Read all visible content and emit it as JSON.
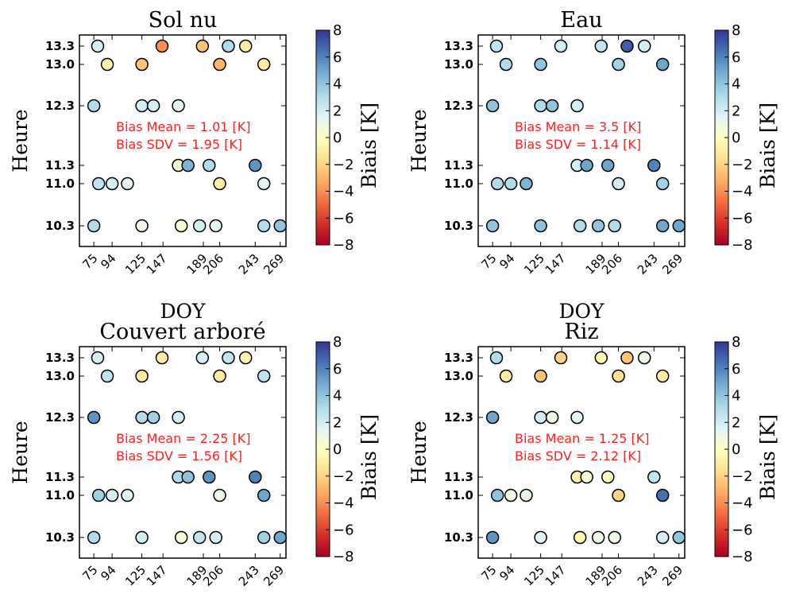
{
  "colormap": {
    "name": "RdYlBu",
    "stops": [
      "#a50026",
      "#d73027",
      "#f46d43",
      "#fdae61",
      "#fee090",
      "#ffffbf",
      "#e0f3f8",
      "#abd9e9",
      "#74add1",
      "#4575b4",
      "#313695"
    ]
  },
  "chart_data": [
    {
      "type": "scatter",
      "title": "Sol nu",
      "xlabel": "DOY",
      "ylabel": "Heure",
      "colorbar_label": "Biais [K]",
      "x_ticks": [
        "75",
        "94",
        "125",
        "147",
        "189",
        "206",
        "243",
        "269"
      ],
      "y_ticks": [
        "10.3",
        "11.0",
        "11.3",
        "12.3",
        "13.0",
        "13.3"
      ],
      "colorbar_ticks": [
        "−8",
        "−6",
        "−4",
        "−2",
        "0",
        "2",
        "4",
        "6",
        "8"
      ],
      "clim": [
        -8,
        8
      ],
      "annotations": [
        "Bias Mean = 1.01 [K]",
        "Bias SDV = 1.95 [K]"
      ],
      "points": [
        {
          "doy": 79,
          "hour": 13.3,
          "bias": 2
        },
        {
          "doy": 146,
          "hour": 13.3,
          "bias": -4
        },
        {
          "doy": 188,
          "hour": 13.3,
          "bias": -2.5
        },
        {
          "doy": 215,
          "hour": 13.3,
          "bias": 3
        },
        {
          "doy": 233,
          "hour": 13.3,
          "bias": -1
        },
        {
          "doy": 89,
          "hour": 13.0,
          "bias": -0.5
        },
        {
          "doy": 125,
          "hour": 13.0,
          "bias": -2.5
        },
        {
          "doy": 206,
          "hour": 13.0,
          "bias": -3
        },
        {
          "doy": 252,
          "hour": 13.0,
          "bias": -1
        },
        {
          "doy": 75,
          "hour": 12.3,
          "bias": 3
        },
        {
          "doy": 125,
          "hour": 12.3,
          "bias": 2
        },
        {
          "doy": 137,
          "hour": 12.3,
          "bias": 2
        },
        {
          "doy": 163,
          "hour": 12.3,
          "bias": 1.5
        },
        {
          "doy": 163,
          "hour": 11.3,
          "bias": 0.5
        },
        {
          "doy": 173,
          "hour": 11.3,
          "bias": 4.5
        },
        {
          "doy": 195,
          "hour": 11.3,
          "bias": 3
        },
        {
          "doy": 243,
          "hour": 11.3,
          "bias": 5.5
        },
        {
          "doy": 80,
          "hour": 11.0,
          "bias": 2.5
        },
        {
          "doy": 94,
          "hour": 11.0,
          "bias": 2
        },
        {
          "doy": 110,
          "hour": 11.0,
          "bias": 1.5
        },
        {
          "doy": 206,
          "hour": 11.0,
          "bias": -1
        },
        {
          "doy": 252,
          "hour": 11.0,
          "bias": 1.5
        },
        {
          "doy": 75,
          "hour": 10.3,
          "bias": 3
        },
        {
          "doy": 125,
          "hour": 10.3,
          "bias": 1
        },
        {
          "doy": 166,
          "hour": 10.3,
          "bias": 0.5
        },
        {
          "doy": 185,
          "hour": 10.3,
          "bias": 2
        },
        {
          "doy": 202,
          "hour": 10.3,
          "bias": 1.5
        },
        {
          "doy": 252,
          "hour": 10.3,
          "bias": 3
        },
        {
          "doy": 269,
          "hour": 10.3,
          "bias": 4
        }
      ]
    },
    {
      "type": "scatter",
      "title": "Eau",
      "xlabel": "DOY",
      "ylabel": "Heure",
      "colorbar_label": "Biais [K]",
      "x_ticks": [
        "75",
        "94",
        "125",
        "147",
        "189",
        "206",
        "243",
        "269"
      ],
      "y_ticks": [
        "10.3",
        "11.0",
        "11.3",
        "12.3",
        "13.0",
        "13.3"
      ],
      "colorbar_ticks": [
        "−8",
        "−6",
        "−4",
        "−2",
        "0",
        "2",
        "4",
        "6",
        "8"
      ],
      "clim": [
        -8,
        8
      ],
      "annotations": [
        "Bias Mean = 3.5 [K]",
        "Bias SDV = 1.14 [K]"
      ],
      "points": [
        {
          "doy": 79,
          "hour": 13.3,
          "bias": 2.5
        },
        {
          "doy": 146,
          "hour": 13.3,
          "bias": 2
        },
        {
          "doy": 188,
          "hour": 13.3,
          "bias": 2.5
        },
        {
          "doy": 215,
          "hour": 13.3,
          "bias": 7
        },
        {
          "doy": 233,
          "hour": 13.3,
          "bias": 2
        },
        {
          "doy": 89,
          "hour": 13.0,
          "bias": 3
        },
        {
          "doy": 125,
          "hour": 13.0,
          "bias": 4
        },
        {
          "doy": 206,
          "hour": 13.0,
          "bias": 3.5
        },
        {
          "doy": 252,
          "hour": 13.0,
          "bias": 5
        },
        {
          "doy": 75,
          "hour": 12.3,
          "bias": 4
        },
        {
          "doy": 125,
          "hour": 12.3,
          "bias": 3
        },
        {
          "doy": 137,
          "hour": 12.3,
          "bias": 4
        },
        {
          "doy": 163,
          "hour": 12.3,
          "bias": 2
        },
        {
          "doy": 163,
          "hour": 11.3,
          "bias": 2
        },
        {
          "doy": 173,
          "hour": 11.3,
          "bias": 5
        },
        {
          "doy": 195,
          "hour": 11.3,
          "bias": 5
        },
        {
          "doy": 243,
          "hour": 11.3,
          "bias": 6
        },
        {
          "doy": 80,
          "hour": 11.0,
          "bias": 3
        },
        {
          "doy": 94,
          "hour": 11.0,
          "bias": 3
        },
        {
          "doy": 110,
          "hour": 11.0,
          "bias": 4.5
        },
        {
          "doy": 206,
          "hour": 11.0,
          "bias": 2
        },
        {
          "doy": 252,
          "hour": 11.0,
          "bias": 3.5
        },
        {
          "doy": 75,
          "hour": 10.3,
          "bias": 4
        },
        {
          "doy": 125,
          "hour": 10.3,
          "bias": 4
        },
        {
          "doy": 166,
          "hour": 10.3,
          "bias": 3
        },
        {
          "doy": 185,
          "hour": 10.3,
          "bias": 4
        },
        {
          "doy": 202,
          "hour": 10.3,
          "bias": 3
        },
        {
          "doy": 252,
          "hour": 10.3,
          "bias": 5
        },
        {
          "doy": 269,
          "hour": 10.3,
          "bias": 5
        }
      ]
    },
    {
      "type": "scatter",
      "title": "Couvert arboré",
      "xlabel": "DOY",
      "ylabel": "Heure",
      "colorbar_label": "Biais [K]",
      "x_ticks": [
        "75",
        "94",
        "125",
        "147",
        "189",
        "206",
        "243",
        "269"
      ],
      "y_ticks": [
        "10.3",
        "11.0",
        "11.3",
        "12.3",
        "13.0",
        "13.3"
      ],
      "colorbar_ticks": [
        "−8",
        "−6",
        "−4",
        "−2",
        "0",
        "2",
        "4",
        "6",
        "8"
      ],
      "clim": [
        -8,
        8
      ],
      "annotations": [
        "Bias Mean = 2.25 [K]",
        "Bias SDV = 1.56 [K]"
      ],
      "points": [
        {
          "doy": 79,
          "hour": 13.3,
          "bias": 2
        },
        {
          "doy": 146,
          "hour": 13.3,
          "bias": -1
        },
        {
          "doy": 188,
          "hour": 13.3,
          "bias": 2
        },
        {
          "doy": 215,
          "hour": 13.3,
          "bias": 2.5
        },
        {
          "doy": 233,
          "hour": 13.3,
          "bias": -0.5
        },
        {
          "doy": 89,
          "hour": 13.0,
          "bias": 2.5
        },
        {
          "doy": 125,
          "hour": 13.0,
          "bias": -1
        },
        {
          "doy": 206,
          "hour": 13.0,
          "bias": -1
        },
        {
          "doy": 252,
          "hour": 13.0,
          "bias": 2.5
        },
        {
          "doy": 75,
          "hour": 12.3,
          "bias": 5.5
        },
        {
          "doy": 125,
          "hour": 12.3,
          "bias": 3
        },
        {
          "doy": 137,
          "hour": 12.3,
          "bias": 3.5
        },
        {
          "doy": 163,
          "hour": 12.3,
          "bias": 2
        },
        {
          "doy": 163,
          "hour": 11.3,
          "bias": 3
        },
        {
          "doy": 173,
          "hour": 11.3,
          "bias": 4
        },
        {
          "doy": 195,
          "hour": 11.3,
          "bias": 5.5
        },
        {
          "doy": 243,
          "hour": 11.3,
          "bias": 6
        },
        {
          "doy": 80,
          "hour": 11.0,
          "bias": 3.5
        },
        {
          "doy": 94,
          "hour": 11.0,
          "bias": 2
        },
        {
          "doy": 110,
          "hour": 11.0,
          "bias": 1.5
        },
        {
          "doy": 206,
          "hour": 11.0,
          "bias": 1
        },
        {
          "doy": 252,
          "hour": 11.0,
          "bias": 5
        },
        {
          "doy": 75,
          "hour": 10.3,
          "bias": 3
        },
        {
          "doy": 125,
          "hour": 10.3,
          "bias": 2
        },
        {
          "doy": 166,
          "hour": 10.3,
          "bias": 0.5
        },
        {
          "doy": 185,
          "hour": 10.3,
          "bias": 2.5
        },
        {
          "doy": 202,
          "hour": 10.3,
          "bias": 2
        },
        {
          "doy": 252,
          "hour": 10.3,
          "bias": 3.5
        },
        {
          "doy": 269,
          "hour": 10.3,
          "bias": 5
        }
      ]
    },
    {
      "type": "scatter",
      "title": "Riz",
      "xlabel": "DOY",
      "ylabel": "Heure",
      "colorbar_label": "Biais [K]",
      "x_ticks": [
        "75",
        "94",
        "125",
        "147",
        "189",
        "206",
        "243",
        "269"
      ],
      "y_ticks": [
        "10.3",
        "11.0",
        "11.3",
        "12.3",
        "13.0",
        "13.3"
      ],
      "colorbar_ticks": [
        "−8",
        "−6",
        "−4",
        "−2",
        "0",
        "2",
        "4",
        "6",
        "8"
      ],
      "clim": [
        -8,
        8
      ],
      "annotations": [
        "Bias Mean = 1.25 [K]",
        "Bias SDV = 2.12 [K]"
      ],
      "points": [
        {
          "doy": 79,
          "hour": 13.3,
          "bias": 3
        },
        {
          "doy": 146,
          "hour": 13.3,
          "bias": -2
        },
        {
          "doy": 188,
          "hour": 13.3,
          "bias": -0.5
        },
        {
          "doy": 215,
          "hour": 13.3,
          "bias": -2.5
        },
        {
          "doy": 233,
          "hour": 13.3,
          "bias": 1
        },
        {
          "doy": 89,
          "hour": 13.0,
          "bias": -1
        },
        {
          "doy": 125,
          "hour": 13.0,
          "bias": -2.5
        },
        {
          "doy": 206,
          "hour": 13.0,
          "bias": -1.5
        },
        {
          "doy": 252,
          "hour": 13.0,
          "bias": -1
        },
        {
          "doy": 75,
          "hour": 12.3,
          "bias": 5
        },
        {
          "doy": 125,
          "hour": 12.3,
          "bias": 2
        },
        {
          "doy": 137,
          "hour": 12.3,
          "bias": 1
        },
        {
          "doy": 163,
          "hour": 12.3,
          "bias": 1.5
        },
        {
          "doy": 163,
          "hour": 11.3,
          "bias": -0.5
        },
        {
          "doy": 173,
          "hour": 11.3,
          "bias": 0.5
        },
        {
          "doy": 195,
          "hour": 11.3,
          "bias": 0
        },
        {
          "doy": 243,
          "hour": 11.3,
          "bias": 2.5
        },
        {
          "doy": 80,
          "hour": 11.0,
          "bias": 4
        },
        {
          "doy": 94,
          "hour": 11.0,
          "bias": 1
        },
        {
          "doy": 110,
          "hour": 11.0,
          "bias": 1
        },
        {
          "doy": 206,
          "hour": 11.0,
          "bias": -2
        },
        {
          "doy": 252,
          "hour": 11.0,
          "bias": 6.5
        },
        {
          "doy": 75,
          "hour": 10.3,
          "bias": 5.5
        },
        {
          "doy": 125,
          "hour": 10.3,
          "bias": 1.5
        },
        {
          "doy": 166,
          "hour": 10.3,
          "bias": -0.5
        },
        {
          "doy": 185,
          "hour": 10.3,
          "bias": 1
        },
        {
          "doy": 202,
          "hour": 10.3,
          "bias": 1
        },
        {
          "doy": 252,
          "hour": 10.3,
          "bias": 2
        },
        {
          "doy": 269,
          "hour": 10.3,
          "bias": 4
        }
      ]
    }
  ]
}
